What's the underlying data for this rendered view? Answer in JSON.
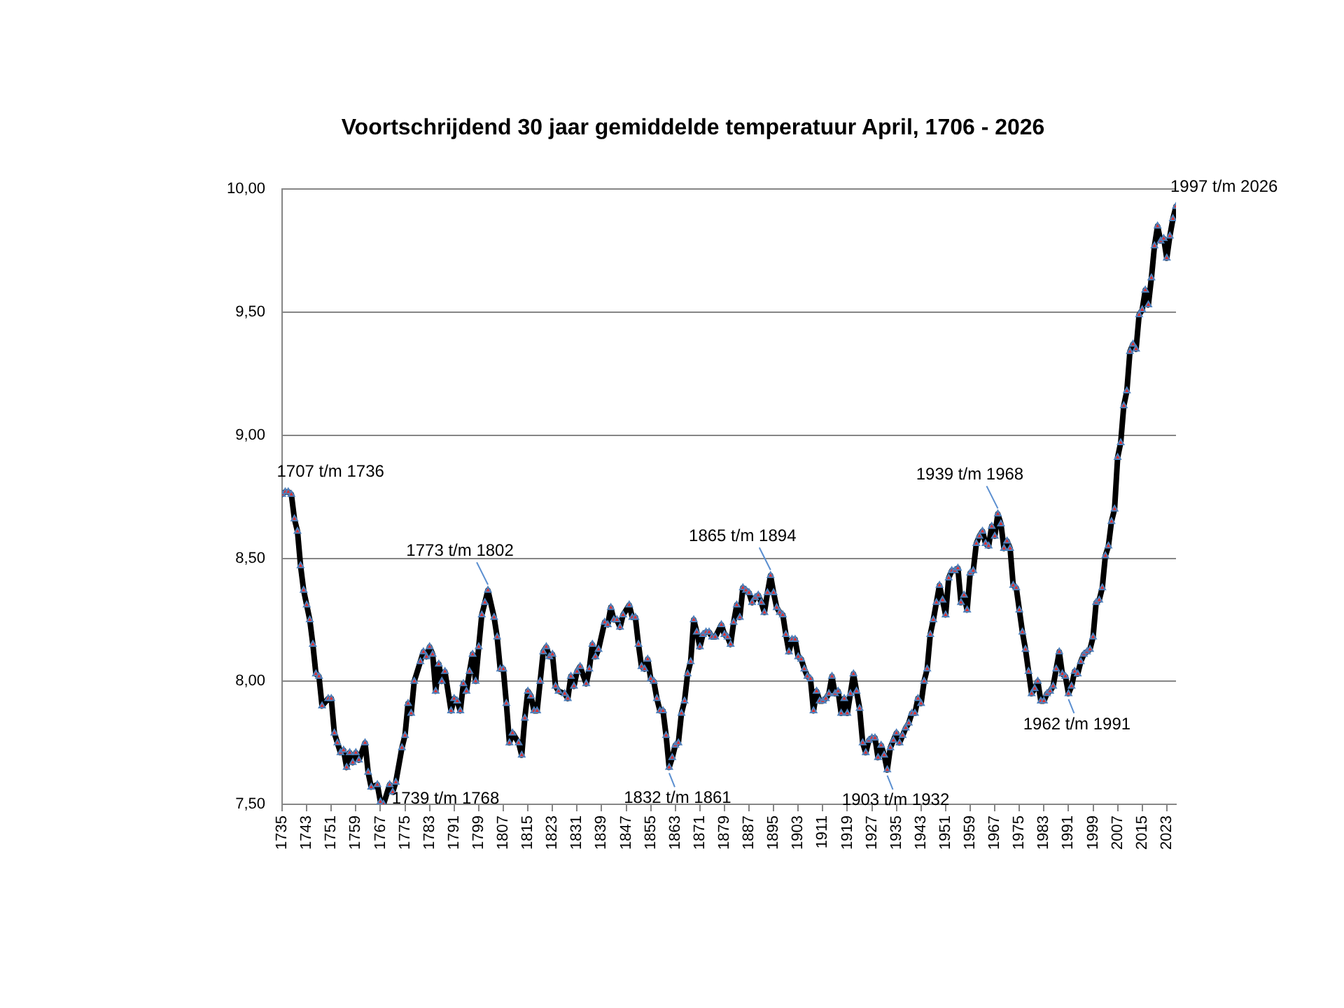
{
  "chart_data": {
    "type": "line",
    "title": "Voortschrijdend 30 jaar gemiddelde temperatuur April, 1706 - 2026",
    "x": [
      1735,
      1736,
      1737,
      1738,
      1739,
      1740,
      1741,
      1742,
      1743,
      1744,
      1745,
      1746,
      1747,
      1748,
      1750,
      1751,
      1752,
      1753,
      1754,
      1755,
      1756,
      1757,
      1758,
      1759,
      1760,
      1762,
      1763,
      1764,
      1766,
      1767,
      1768,
      1770,
      1771,
      1772,
      1774,
      1775,
      1776,
      1777,
      1778,
      1780,
      1781,
      1782,
      1783,
      1784,
      1785,
      1786,
      1787,
      1788,
      1790,
      1791,
      1792,
      1793,
      1794,
      1795,
      1796,
      1797,
      1798,
      1799,
      1800,
      1801,
      1802,
      1804,
      1805,
      1806,
      1807,
      1808,
      1809,
      1810,
      1812,
      1813,
      1814,
      1815,
      1816,
      1817,
      1818,
      1819,
      1820,
      1821,
      1822,
      1823,
      1824,
      1825,
      1827,
      1828,
      1829,
      1830,
      1831,
      1832,
      1834,
      1835,
      1836,
      1837,
      1838,
      1840,
      1841,
      1842,
      1843,
      1844,
      1845,
      1846,
      1848,
      1849,
      1850,
      1851,
      1852,
      1853,
      1854,
      1855,
      1856,
      1857,
      1858,
      1859,
      1860,
      1861,
      1862,
      1863,
      1864,
      1865,
      1866,
      1867,
      1868,
      1869,
      1870,
      1871,
      1872,
      1873,
      1874,
      1875,
      1876,
      1878,
      1879,
      1880,
      1881,
      1882,
      1883,
      1884,
      1885,
      1886,
      1887,
      1888,
      1889,
      1890,
      1891,
      1892,
      1893,
      1894,
      1895,
      1896,
      1897,
      1898,
      1899,
      1900,
      1901,
      1902,
      1903,
      1904,
      1905,
      1906,
      1907,
      1908,
      1909,
      1910,
      1911,
      1912,
      1913,
      1914,
      1915,
      1916,
      1917,
      1918,
      1919,
      1920,
      1921,
      1922,
      1923,
      1924,
      1925,
      1926,
      1927,
      1928,
      1929,
      1930,
      1931,
      1932,
      1933,
      1934,
      1935,
      1936,
      1937,
      1938,
      1939,
      1940,
      1941,
      1942,
      1943,
      1944,
      1945,
      1946,
      1947,
      1948,
      1949,
      1950,
      1951,
      1952,
      1953,
      1954,
      1955,
      1956,
      1957,
      1958,
      1959,
      1960,
      1961,
      1962,
      1963,
      1964,
      1965,
      1966,
      1967,
      1968,
      1969,
      1970,
      1971,
      1972,
      1973,
      1974,
      1975,
      1976,
      1977,
      1978,
      1979,
      1980,
      1981,
      1982,
      1983,
      1984,
      1985,
      1986,
      1987,
      1988,
      1989,
      1990,
      1991,
      1992,
      1993,
      1994,
      1995,
      1996,
      1997,
      1998,
      1999,
      2000,
      2001,
      2002,
      2003,
      2004,
      2005,
      2006,
      2007,
      2008,
      2009,
      2010,
      2011,
      2012,
      2013,
      2014,
      2015,
      2016,
      2017,
      2018,
      2019,
      2020,
      2021,
      2022,
      2023,
      2024,
      2025,
      2026
    ],
    "series": [
      {
        "color": "#000000",
        "values": [
          8.76,
          8.77,
          8.77,
          8.76,
          8.66,
          8.61,
          8.47,
          8.37,
          8.31,
          8.25,
          8.15,
          8.03,
          8.02,
          7.9,
          7.93,
          7.93,
          7.79,
          7.75,
          7.71,
          7.72,
          7.65,
          7.71,
          7.67,
          7.71,
          7.68,
          7.75,
          7.63,
          7.57,
          7.58,
          7.51,
          7.5,
          7.58,
          7.55,
          7.59,
          7.73,
          7.78,
          7.91,
          7.87,
          8.0,
          8.08,
          8.12,
          8.1,
          8.14,
          8.11,
          7.96,
          8.07,
          8.0,
          8.04,
          7.88,
          7.93,
          7.92,
          7.88,
          7.99,
          7.96,
          8.04,
          8.11,
          8.0,
          8.14,
          8.27,
          8.32,
          8.37,
          8.26,
          8.18,
          8.05,
          8.05,
          7.91,
          7.75,
          7.79,
          7.75,
          7.7,
          7.85,
          7.96,
          7.94,
          7.88,
          7.88,
          8.0,
          8.12,
          8.14,
          8.1,
          8.11,
          7.98,
          7.96,
          7.95,
          7.93,
          8.02,
          7.98,
          8.04,
          8.06,
          7.99,
          8.05,
          8.15,
          8.1,
          8.13,
          8.24,
          8.23,
          8.3,
          8.25,
          8.25,
          8.22,
          8.27,
          8.31,
          8.26,
          8.26,
          8.15,
          8.06,
          8.05,
          8.09,
          8.01,
          8.0,
          7.93,
          7.88,
          7.88,
          7.78,
          7.65,
          7.69,
          7.74,
          7.75,
          7.87,
          7.92,
          8.03,
          8.08,
          8.25,
          8.2,
          8.14,
          8.19,
          8.2,
          8.2,
          8.18,
          8.18,
          8.23,
          8.19,
          8.18,
          8.15,
          8.24,
          8.31,
          8.26,
          8.38,
          8.37,
          8.36,
          8.32,
          8.34,
          8.35,
          8.32,
          8.28,
          8.36,
          8.43,
          8.36,
          8.3,
          8.28,
          8.27,
          8.19,
          8.12,
          8.17,
          8.17,
          8.1,
          8.09,
          8.05,
          8.02,
          8.01,
          7.88,
          7.96,
          7.92,
          7.92,
          7.93,
          7.95,
          8.02,
          7.95,
          7.96,
          7.87,
          7.93,
          7.87,
          7.95,
          8.03,
          7.96,
          7.89,
          7.75,
          7.71,
          7.76,
          7.77,
          7.77,
          7.69,
          7.74,
          7.7,
          7.64,
          7.73,
          7.76,
          7.79,
          7.75,
          7.78,
          7.81,
          7.83,
          7.87,
          7.87,
          7.93,
          7.91,
          8.0,
          8.05,
          8.19,
          8.25,
          8.32,
          8.39,
          8.33,
          8.27,
          8.42,
          8.45,
          8.45,
          8.46,
          8.32,
          8.35,
          8.29,
          8.44,
          8.45,
          8.56,
          8.59,
          8.61,
          8.56,
          8.55,
          8.63,
          8.59,
          8.68,
          8.64,
          8.54,
          8.57,
          8.54,
          8.39,
          8.38,
          8.29,
          8.2,
          8.13,
          8.04,
          7.95,
          7.97,
          8.0,
          7.92,
          7.92,
          7.95,
          7.96,
          7.98,
          8.05,
          8.12,
          8.03,
          8.02,
          7.95,
          7.98,
          8.04,
          8.03,
          8.08,
          8.11,
          8.12,
          8.13,
          8.18,
          8.32,
          8.33,
          8.38,
          8.51,
          8.55,
          8.65,
          8.7,
          8.91,
          8.97,
          9.12,
          9.18,
          9.34,
          9.37,
          9.35,
          9.49,
          9.51,
          9.59,
          9.53,
          9.64,
          9.77,
          9.85,
          9.79,
          9.8,
          9.72,
          9.81,
          9.88,
          9.93
        ]
      }
    ],
    "xlim": [
      1735,
      2026
    ],
    "xticks": [
      1735,
      1743,
      1751,
      1759,
      1767,
      1775,
      1783,
      1791,
      1799,
      1807,
      1815,
      1823,
      1831,
      1839,
      1847,
      1855,
      1863,
      1871,
      1879,
      1887,
      1895,
      1903,
      1911,
      1919,
      1927,
      1935,
      1943,
      1951,
      1959,
      1967,
      1975,
      1983,
      1991,
      1999,
      2007,
      2015,
      2023
    ],
    "ylim": [
      7.5,
      10
    ],
    "yticks": [
      {
        "value": 7.5,
        "label": "7,50"
      },
      {
        "value": 8,
        "label": "8,00"
      },
      {
        "value": 8.5,
        "label": "8,50"
      },
      {
        "value": 9,
        "label": "9,00"
      },
      {
        "value": 9.5,
        "label": "9,50"
      },
      {
        "value": 10,
        "label": "10,00"
      }
    ],
    "grid": "y",
    "legend": false,
    "marker": "triangle",
    "line_style": "solid",
    "annotations": [
      {
        "text": "1707 t/m 1736",
        "x": 1736,
        "y": 8.77
      },
      {
        "text": "1739 t/m 1768",
        "x": 1768,
        "y": 7.5
      },
      {
        "text": "1773 t/m 1802",
        "x": 1802,
        "y": 8.37
      },
      {
        "text": "1832 t/m 1861",
        "x": 1861,
        "y": 7.65
      },
      {
        "text": "1865 t/m 1894",
        "x": 1894,
        "y": 8.43
      },
      {
        "text": "1903 t/m 1932",
        "x": 1932,
        "y": 7.64
      },
      {
        "text": "1939 t/m 1968",
        "x": 1968,
        "y": 8.68
      },
      {
        "text": "1962 t/m 1991",
        "x": 1991,
        "y": 7.95
      },
      {
        "text": "1997 t/m 2026",
        "x": 2026,
        "y": 9.93
      }
    ]
  }
}
